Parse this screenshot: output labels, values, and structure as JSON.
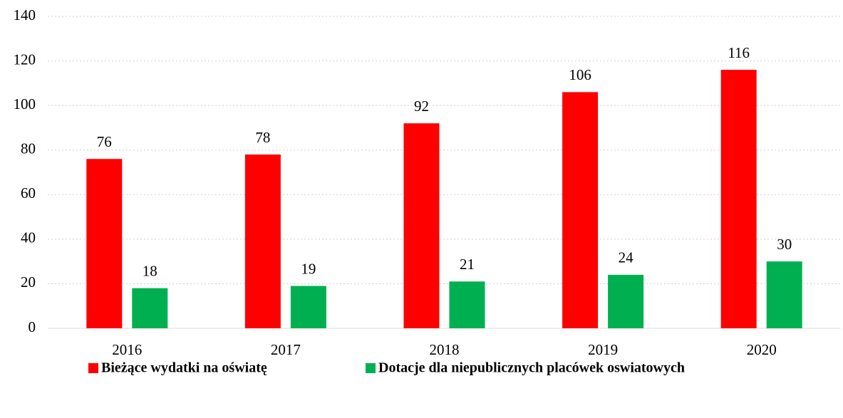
{
  "chart_data": {
    "type": "bar",
    "categories": [
      "2016",
      "2017",
      "2018",
      "2019",
      "2020"
    ],
    "series": [
      {
        "name": "Bieżące wydatki na oświatę",
        "color": "#ff0000",
        "values": [
          76,
          78,
          92,
          106,
          116
        ]
      },
      {
        "name": "Dotacje dla niepublicznych placówek oswiatowych",
        "color": "#00b050",
        "values": [
          18,
          19,
          21,
          24,
          30
        ]
      }
    ],
    "ylim": [
      0,
      140
    ],
    "yticks": [
      0,
      20,
      40,
      60,
      80,
      100,
      120,
      140
    ],
    "grid": true,
    "legend": "bottom"
  }
}
